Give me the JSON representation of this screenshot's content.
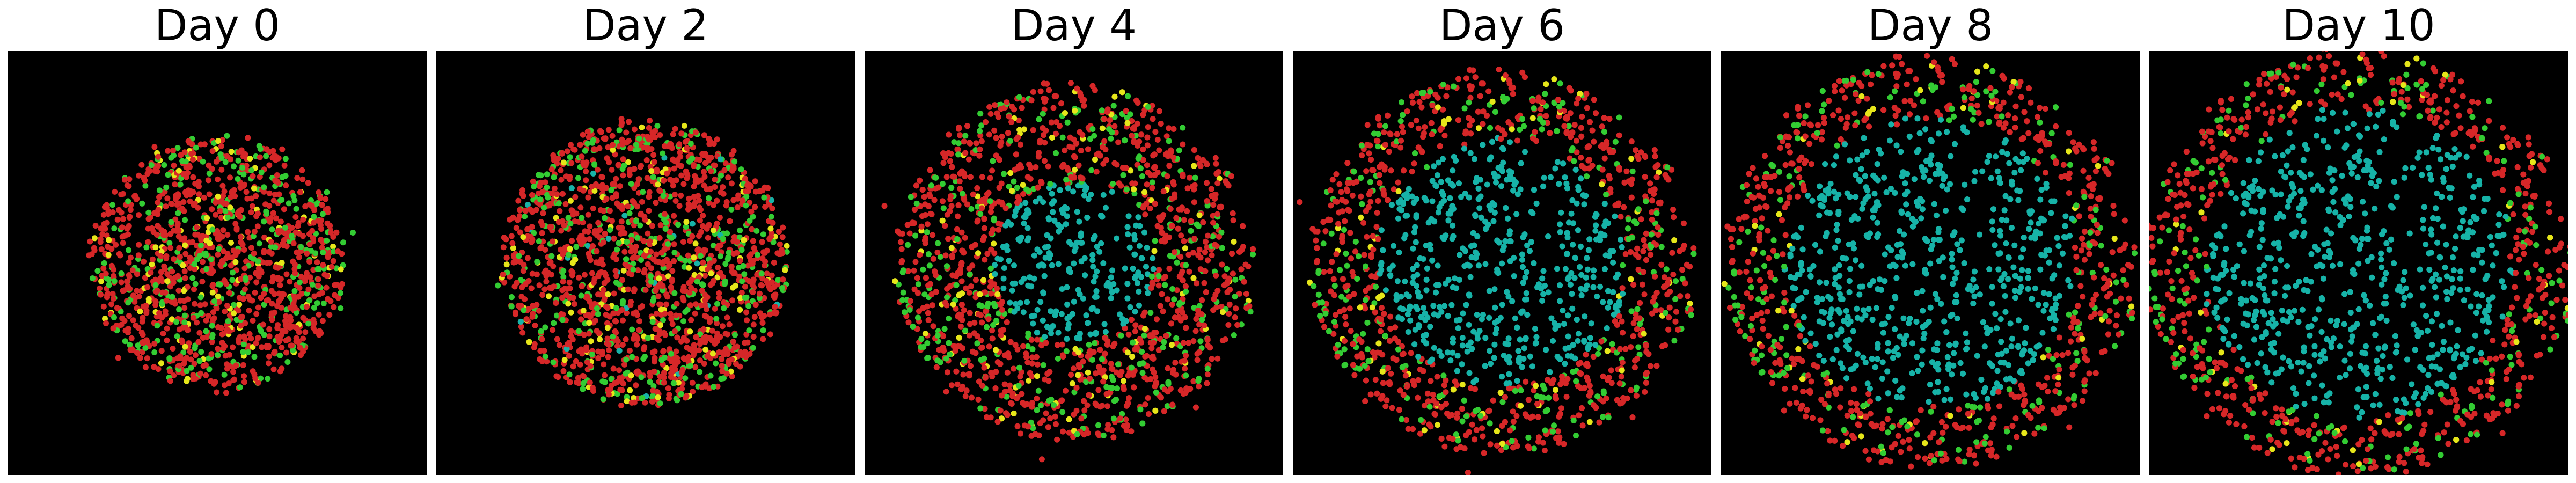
{
  "figure": {
    "panels": [
      {
        "title": "Day 0",
        "day": 0
      },
      {
        "title": "Day 2",
        "day": 2
      },
      {
        "title": "Day 4",
        "day": 4
      },
      {
        "title": "Day 6",
        "day": 6
      },
      {
        "title": "Day 8",
        "day": 8
      },
      {
        "title": "Day 10",
        "day": 10
      }
    ],
    "colors": {
      "background": "#000000",
      "red": "#d62728",
      "cyan": "#17b3a8",
      "green": "#33cc33",
      "yellow": "#e6e61a"
    }
  }
}
